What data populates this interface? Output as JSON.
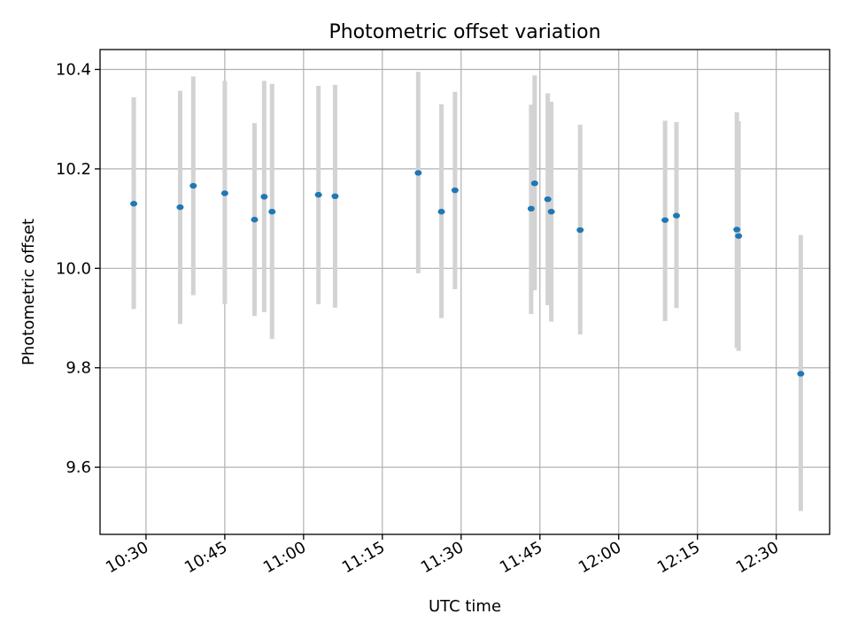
{
  "chart_data": {
    "type": "scatter",
    "title": "Photometric offset variation",
    "xlabel": "UTC time",
    "ylabel": "Photometric offset",
    "xlim": [
      "10:21:15",
      "12:40:10"
    ],
    "ylim": [
      9.465,
      10.44
    ],
    "x_ticks": [
      "10:30",
      "10:45",
      "11:00",
      "11:15",
      "11:30",
      "11:45",
      "12:00",
      "12:15",
      "12:30"
    ],
    "y_ticks": [
      9.6,
      9.8,
      10.0,
      10.2,
      10.4
    ],
    "y_tick_labels": [
      "9.6",
      "9.8",
      "10.0",
      "10.2",
      "10.4"
    ],
    "grid": true,
    "points": [
      {
        "x": "10:27:40",
        "y": 10.13,
        "ylow": 9.918,
        "yhigh": 10.344
      },
      {
        "x": "10:36:30",
        "y": 10.123,
        "ylow": 9.888,
        "yhigh": 10.357
      },
      {
        "x": "10:39:00",
        "y": 10.166,
        "ylow": 9.946,
        "yhigh": 10.386
      },
      {
        "x": "10:45:00",
        "y": 10.151,
        "ylow": 9.928,
        "yhigh": 10.377
      },
      {
        "x": "10:50:40",
        "y": 10.098,
        "ylow": 9.904,
        "yhigh": 10.292
      },
      {
        "x": "10:52:30",
        "y": 10.144,
        "ylow": 9.912,
        "yhigh": 10.377
      },
      {
        "x": "10:54:00",
        "y": 10.114,
        "ylow": 9.858,
        "yhigh": 10.371
      },
      {
        "x": "11:02:50",
        "y": 10.148,
        "ylow": 9.928,
        "yhigh": 10.367
      },
      {
        "x": "11:06:00",
        "y": 10.145,
        "ylow": 9.921,
        "yhigh": 10.369
      },
      {
        "x": "11:21:50",
        "y": 10.192,
        "ylow": 9.99,
        "yhigh": 10.395
      },
      {
        "x": "11:26:15",
        "y": 10.114,
        "ylow": 9.9,
        "yhigh": 10.33
      },
      {
        "x": "11:28:50",
        "y": 10.157,
        "ylow": 9.958,
        "yhigh": 10.355
      },
      {
        "x": "11:43:20",
        "y": 10.12,
        "ylow": 9.908,
        "yhigh": 10.329
      },
      {
        "x": "11:44:00",
        "y": 10.171,
        "ylow": 9.956,
        "yhigh": 10.388
      },
      {
        "x": "11:46:30",
        "y": 10.139,
        "ylow": 9.926,
        "yhigh": 10.352
      },
      {
        "x": "11:47:10",
        "y": 10.114,
        "ylow": 9.893,
        "yhigh": 10.335
      },
      {
        "x": "11:52:40",
        "y": 10.077,
        "ylow": 9.867,
        "yhigh": 10.289
      },
      {
        "x": "12:08:50",
        "y": 10.097,
        "ylow": 9.894,
        "yhigh": 10.297
      },
      {
        "x": "12:11:00",
        "y": 10.106,
        "ylow": 9.92,
        "yhigh": 10.294
      },
      {
        "x": "12:22:30",
        "y": 10.078,
        "ylow": 9.84,
        "yhigh": 10.314
      },
      {
        "x": "12:22:50",
        "y": 10.065,
        "ylow": 9.834,
        "yhigh": 10.296
      },
      {
        "x": "12:34:40",
        "y": 9.788,
        "ylow": 9.512,
        "yhigh": 10.067
      }
    ],
    "point_color": "#1f77b4",
    "errorbar_color": "#d3d3d3"
  }
}
